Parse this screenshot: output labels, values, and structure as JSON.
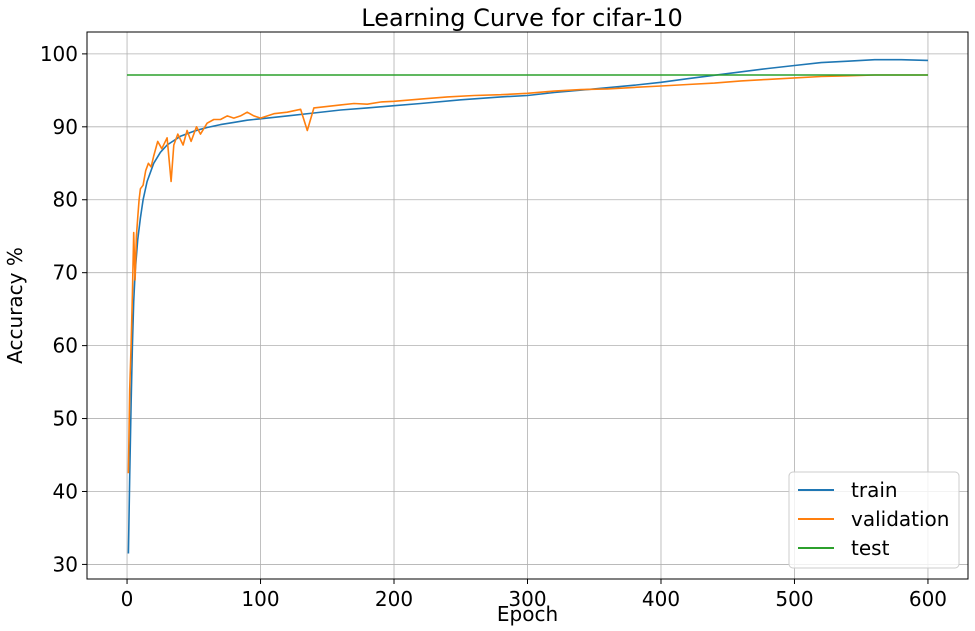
{
  "chart_data": {
    "type": "line",
    "title": "Learning Curve for cifar-10",
    "xlabel": "Epoch",
    "ylabel": "Accuracy %",
    "xlim": [
      -30,
      630
    ],
    "ylim": [
      28,
      103
    ],
    "xticks": [
      0,
      100,
      200,
      300,
      400,
      500,
      600
    ],
    "yticks": [
      30,
      40,
      50,
      60,
      70,
      80,
      90,
      100
    ],
    "grid": true,
    "legend_position": "bottom-right",
    "series": [
      {
        "name": "train",
        "color": "#1f77b4",
        "x": [
          1,
          2,
          3,
          4,
          5,
          6,
          8,
          10,
          12,
          15,
          20,
          25,
          30,
          40,
          50,
          60,
          70,
          80,
          90,
          100,
          120,
          140,
          160,
          180,
          200,
          220,
          250,
          280,
          300,
          320,
          350,
          380,
          400,
          420,
          450,
          480,
          500,
          520,
          540,
          560,
          580,
          600
        ],
        "y": [
          31.5,
          42,
          52,
          60,
          66,
          70,
          74.5,
          77.5,
          80,
          82.5,
          85,
          86.5,
          87.5,
          88.7,
          89.4,
          89.9,
          90.3,
          90.6,
          90.9,
          91.1,
          91.5,
          91.9,
          92.3,
          92.6,
          92.9,
          93.2,
          93.7,
          94.1,
          94.3,
          94.7,
          95.2,
          95.7,
          96.1,
          96.6,
          97.3,
          98,
          98.4,
          98.8,
          99.0,
          99.2,
          99.2,
          99.1
        ]
      },
      {
        "name": "validation",
        "color": "#ff7f0e",
        "x": [
          1,
          2,
          3,
          4,
          5,
          6,
          7,
          8,
          9,
          10,
          12,
          14,
          16,
          18,
          20,
          23,
          26,
          30,
          33,
          35,
          38,
          42,
          45,
          48,
          52,
          55,
          60,
          65,
          70,
          75,
          80,
          85,
          90,
          95,
          100,
          110,
          120,
          130,
          135,
          140,
          150,
          160,
          170,
          180,
          190,
          200,
          220,
          240,
          260,
          280,
          300,
          320,
          340,
          360,
          380,
          400,
          420,
          440,
          460,
          480,
          500,
          520,
          540,
          560,
          580,
          600
        ],
        "y": [
          42.5,
          54,
          60,
          67,
          75.5,
          69,
          75,
          77.5,
          80,
          81.5,
          82,
          84,
          85,
          84.5,
          86,
          88,
          87,
          88.5,
          82.5,
          87.5,
          89,
          87.5,
          89.5,
          88,
          90,
          89,
          90.5,
          91,
          91,
          91.5,
          91.2,
          91.5,
          92,
          91.5,
          91.2,
          91.8,
          92,
          92.4,
          89.5,
          92.6,
          92.8,
          93,
          93.2,
          93.1,
          93.4,
          93.5,
          93.8,
          94.1,
          94.3,
          94.4,
          94.6,
          94.9,
          95.1,
          95.2,
          95.4,
          95.6,
          95.8,
          96.0,
          96.3,
          96.5,
          96.7,
          96.9,
          97.0,
          97.1,
          97.1,
          97.1
        ]
      },
      {
        "name": "test",
        "color": "#2ca02c",
        "x": [
          0,
          600
        ],
        "y": [
          97.1,
          97.1
        ]
      }
    ]
  }
}
